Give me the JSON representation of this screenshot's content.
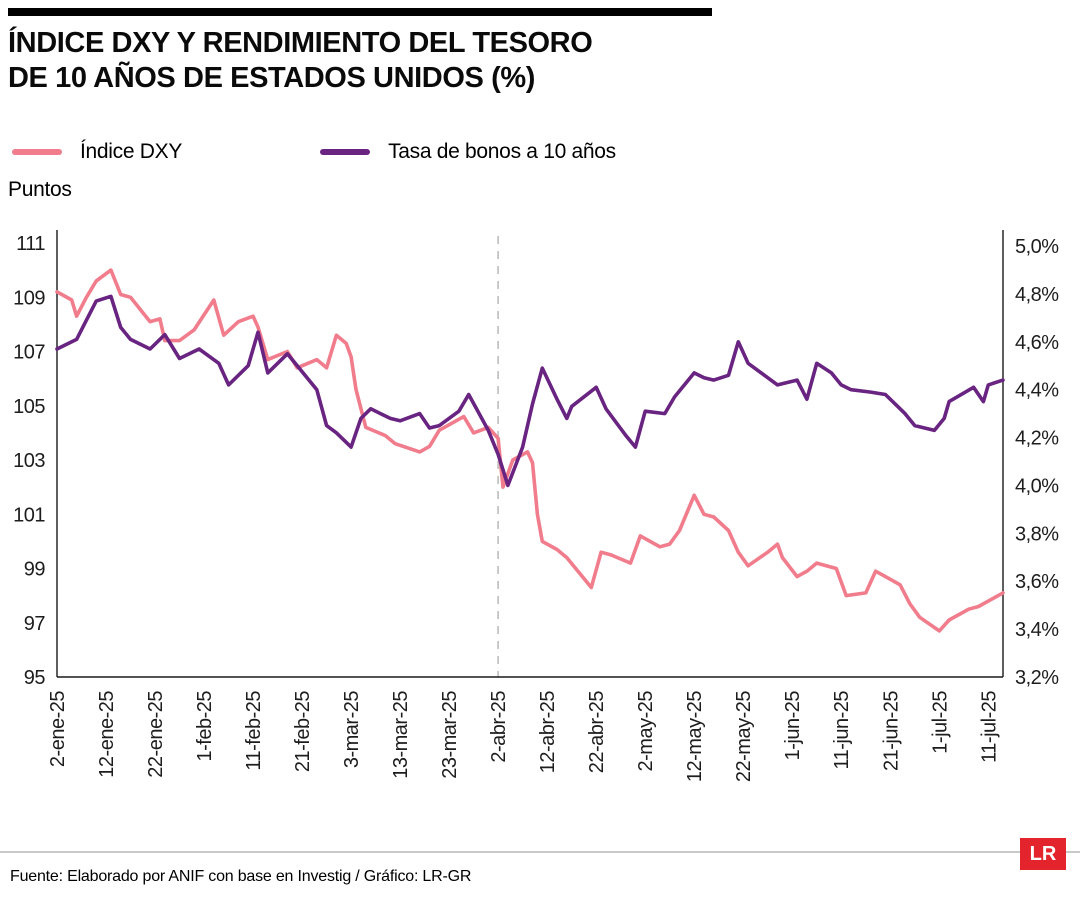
{
  "header": {
    "title_line1": "ÍNDICE DXY Y RENDIMIENTO DEL TESORO",
    "title_line2": "DE 10 AÑOS DE ESTADOS UNIDOS (%)"
  },
  "legend": {
    "items": [
      {
        "label": "Índice DXY",
        "color": "#F07C8C"
      },
      {
        "label": "Tasa de bonos a 10 años",
        "color": "#692481"
      }
    ]
  },
  "footer": {
    "source": "Fuente: Elaborado por ANIF con base en Investig / Gráfico: LR-GR",
    "logo": "LR",
    "logo_color": "#E3242C"
  },
  "chart_data": {
    "type": "line",
    "title": "Índice DXY y rendimiento del Tesoro de 10 años de Estados Unidos (%)",
    "grid": false,
    "legend_position": "top-left",
    "left_axis": {
      "label": "Puntos",
      "min": 95,
      "max": 111,
      "ticks": [
        111,
        109,
        107,
        105,
        103,
        101,
        99,
        97,
        95
      ]
    },
    "right_axis": {
      "min": 3.2,
      "max": 5.0,
      "ticks": [
        {
          "label": "5,0%",
          "value": 5.0
        },
        {
          "label": "4,8%",
          "value": 4.8
        },
        {
          "label": "4,6%",
          "value": 4.6
        },
        {
          "label": "4,4%",
          "value": 4.4
        },
        {
          "label": "4,2%",
          "value": 4.2
        },
        {
          "label": "4,0%",
          "value": 4.0
        },
        {
          "label": "3,8%",
          "value": 3.8
        },
        {
          "label": "3,6%",
          "value": 3.6
        },
        {
          "label": "3,4%",
          "value": 3.4
        },
        {
          "label": "3,2%",
          "value": 3.2
        }
      ]
    },
    "x_axis": {
      "domain_days": [
        0,
        193
      ],
      "tick_days": [
        0,
        10,
        20,
        30,
        40,
        50,
        60,
        70,
        80,
        90,
        100,
        110,
        120,
        130,
        140,
        150,
        160,
        170,
        180,
        190
      ],
      "tick_labels": [
        "2-ene-25",
        "12-ene-25",
        "22-ene-25",
        "1-feb-25",
        "11-feb-25",
        "21-feb-25",
        "3-mar-25",
        "13-mar-25",
        "23-mar-25",
        "2-abr-25",
        "12-abr-25",
        "22-abr-25",
        "2-may-25",
        "12-may-25",
        "22-may-25",
        "1-jun-25",
        "11-jun-25",
        "21-jun-25",
        "1-jul-25",
        "11-jul-25"
      ]
    },
    "vline": {
      "at_day": 90,
      "at_label": "2-abr-25",
      "style": "dashed",
      "color": "#bdbdbd"
    },
    "series": [
      {
        "name": "Índice DXY",
        "axis": "left",
        "unit": "puntos",
        "color": "#F07C8C",
        "points": [
          [
            0,
            109.2
          ],
          [
            3,
            108.9
          ],
          [
            4,
            108.3
          ],
          [
            6,
            109.0
          ],
          [
            8,
            109.6
          ],
          [
            11,
            110.0
          ],
          [
            13,
            109.1
          ],
          [
            15,
            109.0
          ],
          [
            19,
            108.1
          ],
          [
            21,
            108.2
          ],
          [
            22,
            107.4
          ],
          [
            25,
            107.4
          ],
          [
            28,
            107.8
          ],
          [
            32,
            108.9
          ],
          [
            34,
            107.6
          ],
          [
            37,
            108.1
          ],
          [
            40,
            108.3
          ],
          [
            41,
            107.9
          ],
          [
            43,
            106.7
          ],
          [
            47,
            107.0
          ],
          [
            49,
            106.4
          ],
          [
            53,
            106.7
          ],
          [
            55,
            106.4
          ],
          [
            57,
            107.6
          ],
          [
            59,
            107.3
          ],
          [
            60,
            106.8
          ],
          [
            61,
            105.6
          ],
          [
            63,
            104.2
          ],
          [
            67,
            103.9
          ],
          [
            69,
            103.6
          ],
          [
            74,
            103.3
          ],
          [
            76,
            103.5
          ],
          [
            78,
            104.1
          ],
          [
            83,
            104.6
          ],
          [
            85,
            104.0
          ],
          [
            88,
            104.2
          ],
          [
            90,
            103.8
          ],
          [
            91,
            102.0
          ],
          [
            93,
            103.0
          ],
          [
            96,
            103.3
          ],
          [
            97,
            102.9
          ],
          [
            98,
            101.0
          ],
          [
            99,
            100.0
          ],
          [
            102,
            99.7
          ],
          [
            104,
            99.4
          ],
          [
            109,
            98.3
          ],
          [
            111,
            99.6
          ],
          [
            113,
            99.5
          ],
          [
            117,
            99.2
          ],
          [
            119,
            100.2
          ],
          [
            123,
            99.8
          ],
          [
            125,
            99.9
          ],
          [
            127,
            100.4
          ],
          [
            130,
            101.7
          ],
          [
            132,
            101.0
          ],
          [
            134,
            100.9
          ],
          [
            137,
            100.4
          ],
          [
            139,
            99.6
          ],
          [
            141,
            99.1
          ],
          [
            145,
            99.6
          ],
          [
            147,
            99.9
          ],
          [
            148,
            99.4
          ],
          [
            151,
            98.7
          ],
          [
            153,
            98.9
          ],
          [
            155,
            99.2
          ],
          [
            159,
            99.0
          ],
          [
            161,
            98.0
          ],
          [
            165,
            98.1
          ],
          [
            167,
            98.9
          ],
          [
            169,
            98.7
          ],
          [
            172,
            98.4
          ],
          [
            174,
            97.7
          ],
          [
            176,
            97.2
          ],
          [
            180,
            96.7
          ],
          [
            182,
            97.1
          ],
          [
            186,
            97.5
          ],
          [
            188,
            97.6
          ],
          [
            190,
            97.8
          ],
          [
            193,
            98.1
          ]
        ]
      },
      {
        "name": "Tasa de bonos a 10 años",
        "axis": "right",
        "unit": "%",
        "color": "#692481",
        "points": [
          [
            0,
            4.57
          ],
          [
            4,
            4.61
          ],
          [
            6,
            4.69
          ],
          [
            8,
            4.77
          ],
          [
            11,
            4.79
          ],
          [
            13,
            4.66
          ],
          [
            15,
            4.61
          ],
          [
            19,
            4.57
          ],
          [
            22,
            4.63
          ],
          [
            25,
            4.53
          ],
          [
            27,
            4.55
          ],
          [
            29,
            4.57
          ],
          [
            33,
            4.51
          ],
          [
            35,
            4.42
          ],
          [
            39,
            4.5
          ],
          [
            41,
            4.64
          ],
          [
            43,
            4.47
          ],
          [
            47,
            4.55
          ],
          [
            49,
            4.5
          ],
          [
            53,
            4.4
          ],
          [
            55,
            4.25
          ],
          [
            57,
            4.22
          ],
          [
            60,
            4.16
          ],
          [
            62,
            4.28
          ],
          [
            64,
            4.32
          ],
          [
            68,
            4.28
          ],
          [
            70,
            4.27
          ],
          [
            74,
            4.3
          ],
          [
            76,
            4.24
          ],
          [
            78,
            4.25
          ],
          [
            82,
            4.31
          ],
          [
            84,
            4.38
          ],
          [
            88,
            4.23
          ],
          [
            90,
            4.13
          ],
          [
            92,
            4.0
          ],
          [
            95,
            4.16
          ],
          [
            97,
            4.34
          ],
          [
            99,
            4.49
          ],
          [
            102,
            4.36
          ],
          [
            104,
            4.28
          ],
          [
            105,
            4.33
          ],
          [
            110,
            4.41
          ],
          [
            112,
            4.32
          ],
          [
            116,
            4.21
          ],
          [
            118,
            4.16
          ],
          [
            120,
            4.31
          ],
          [
            124,
            4.3
          ],
          [
            126,
            4.37
          ],
          [
            130,
            4.47
          ],
          [
            132,
            4.45
          ],
          [
            134,
            4.44
          ],
          [
            137,
            4.46
          ],
          [
            139,
            4.6
          ],
          [
            141,
            4.51
          ],
          [
            145,
            4.45
          ],
          [
            147,
            4.42
          ],
          [
            151,
            4.44
          ],
          [
            153,
            4.36
          ],
          [
            155,
            4.51
          ],
          [
            158,
            4.47
          ],
          [
            160,
            4.42
          ],
          [
            162,
            4.4
          ],
          [
            166,
            4.39
          ],
          [
            169,
            4.38
          ],
          [
            173,
            4.3
          ],
          [
            175,
            4.25
          ],
          [
            179,
            4.23
          ],
          [
            181,
            4.28
          ],
          [
            182,
            4.35
          ],
          [
            187,
            4.41
          ],
          [
            189,
            4.35
          ],
          [
            190,
            4.42
          ],
          [
            193,
            4.44
          ]
        ]
      }
    ]
  }
}
